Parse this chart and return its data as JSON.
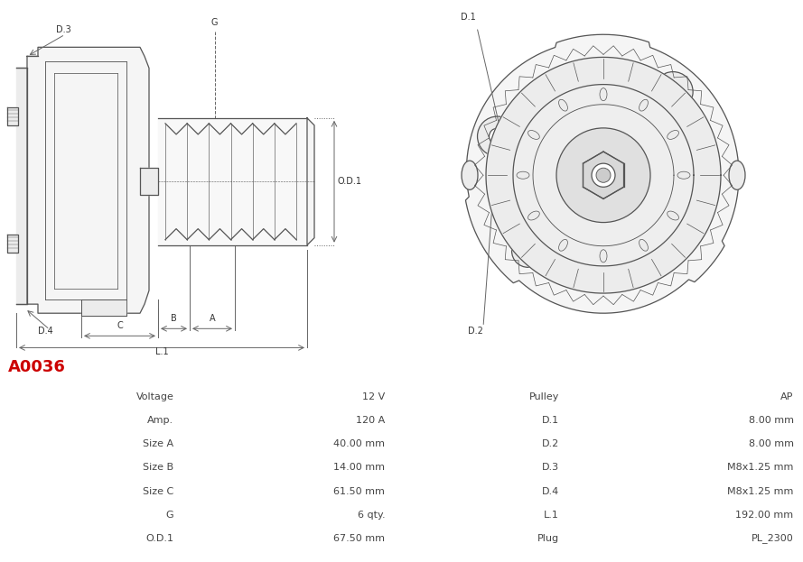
{
  "title": "A0036",
  "title_color": "#cc0000",
  "background_color": "#ffffff",
  "table_rows": [
    [
      "Voltage",
      "12 V",
      "Pulley",
      "AP"
    ],
    [
      "Amp.",
      "120 A",
      "D.1",
      "8.00 mm"
    ],
    [
      "Size A",
      "40.00 mm",
      "D.2",
      "8.00 mm"
    ],
    [
      "Size B",
      "14.00 mm",
      "D.3",
      "M8x1.25 mm"
    ],
    [
      "Size C",
      "61.50 mm",
      "D.4",
      "M8x1.25 mm"
    ],
    [
      "G",
      "6 qty.",
      "L.1",
      "192.00 mm"
    ],
    [
      "O.D.1",
      "67.50 mm",
      "Plug",
      "PL_2300"
    ]
  ],
  "col_label_bg": "#d9d9d9",
  "col_value_bg_odd": "#f2f2f2",
  "col_value_bg_even": "#e8e8e8",
  "cell_text_color": "#444444",
  "border_color": "#ffffff",
  "line_color": "#555555",
  "fill_color": "#f5f5f5",
  "fill_color2": "#ececec"
}
